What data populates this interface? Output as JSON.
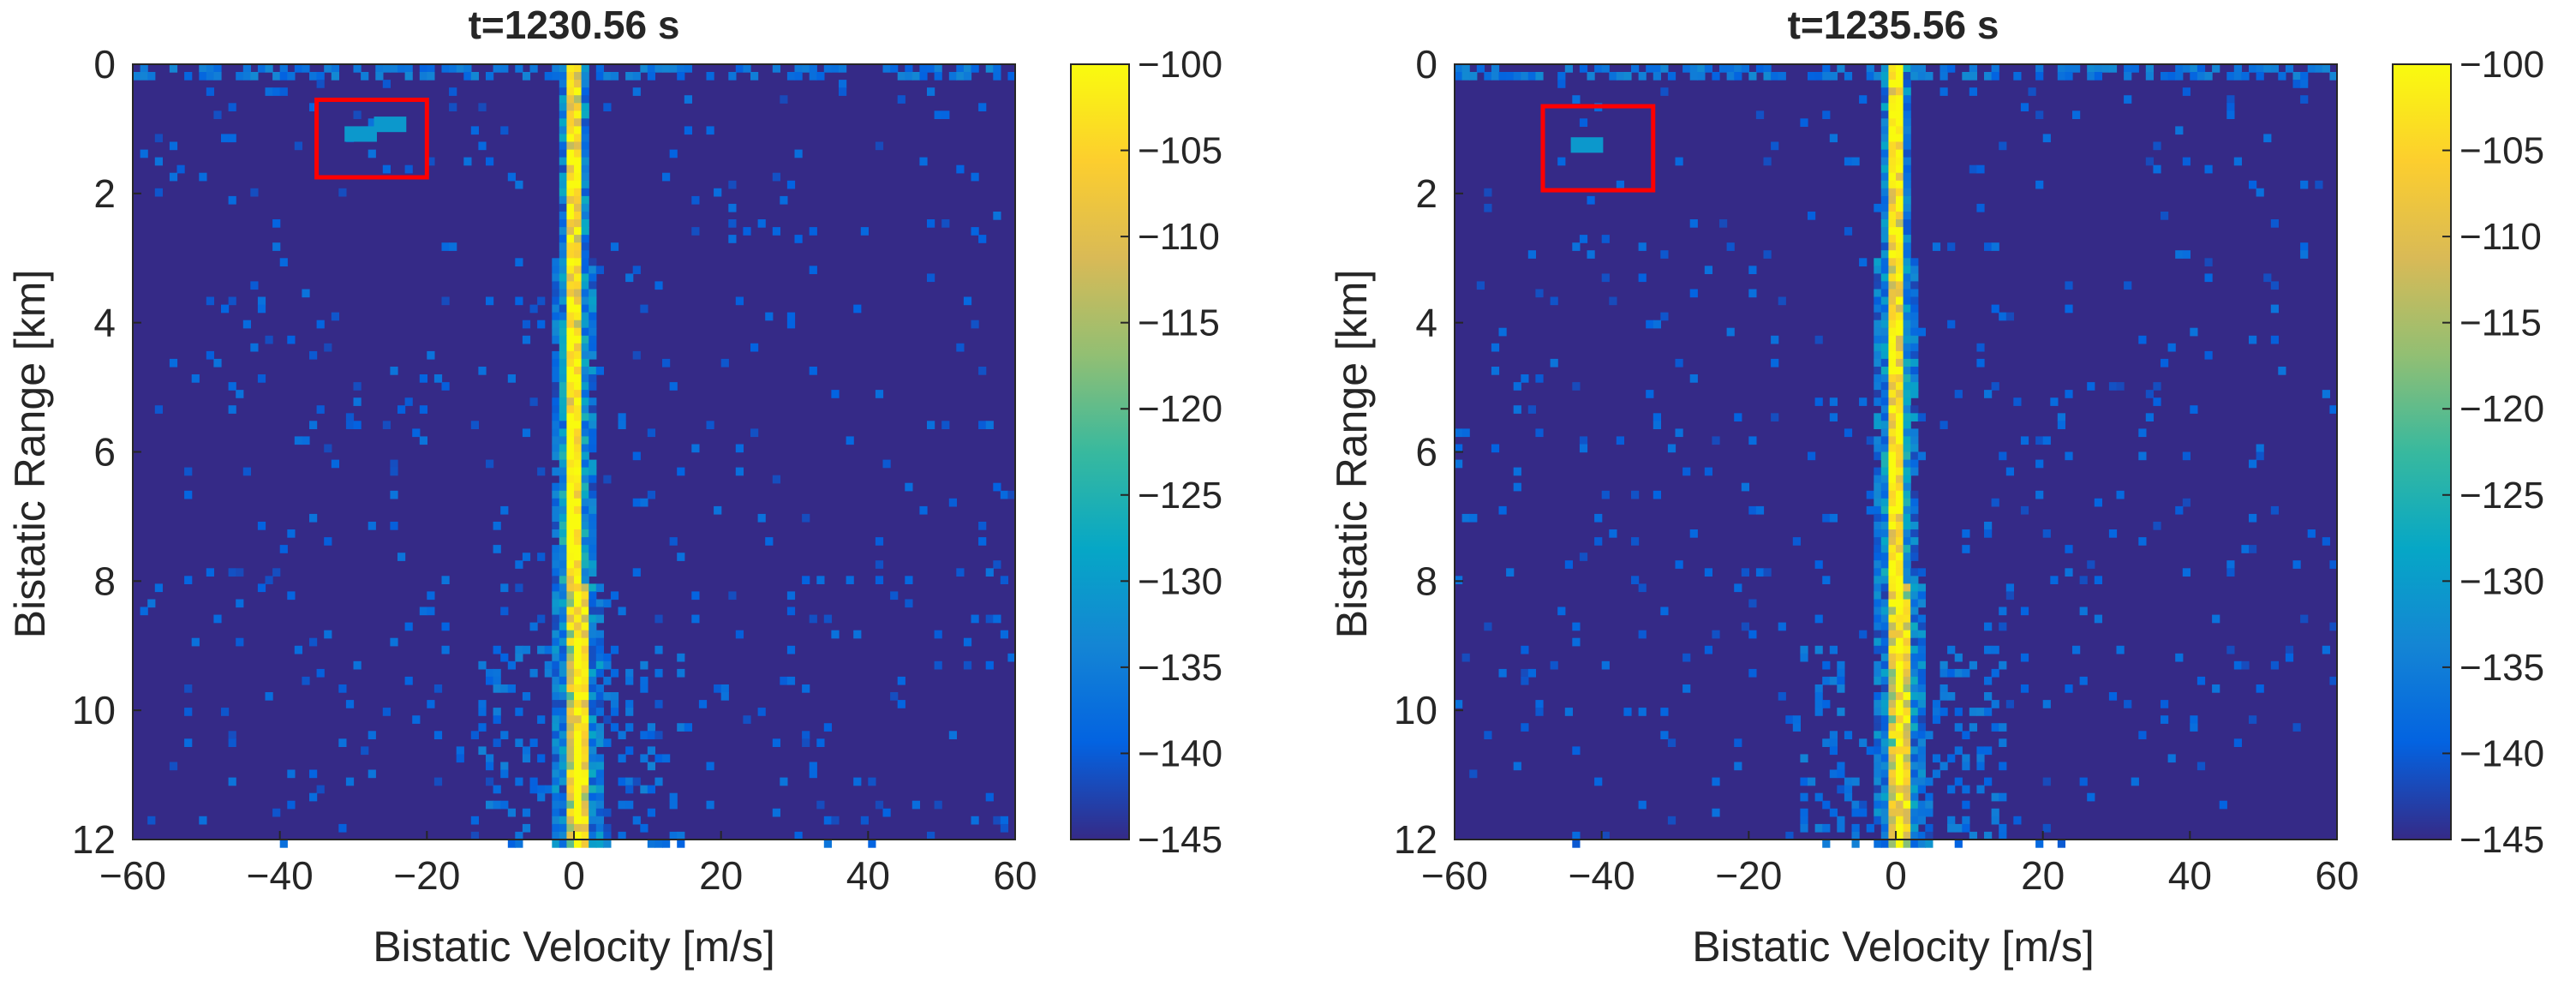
{
  "colors": {
    "background_low": "#352a87",
    "colormap": [
      "#352a87",
      "#0363e1",
      "#1485d4",
      "#06a7c6",
      "#38b99e",
      "#92bf73",
      "#d9ba56",
      "#fcce2e",
      "#f9fb0e"
    ],
    "highlight_box": "#ff0000",
    "axis": "#262626"
  },
  "chart_data": [
    {
      "type": "heatmap",
      "title": "t=1230.56 s",
      "xlabel": "Bistatic Velocity [m/s]",
      "ylabel": "Bistatic Range [km]",
      "xlim": [
        -60,
        60
      ],
      "ylim": [
        0,
        12
      ],
      "y_reversed": true,
      "xticks": [
        "−60",
        "−40",
        "−20",
        "0",
        "20",
        "40",
        "60"
      ],
      "yticks": [
        "0",
        "2",
        "4",
        "6",
        "8",
        "10",
        "12"
      ],
      "colorbar": {
        "clim": [
          -145,
          -100
        ],
        "ticks": [
          "−100",
          "−105",
          "−110",
          "−115",
          "−120",
          "−125",
          "−130",
          "−135",
          "−140",
          "−145"
        ]
      },
      "clutter_ridge": {
        "velocity": 0,
        "spread_far": 4,
        "spread_near": 2
      },
      "targets": [
        {
          "velocity": -29,
          "range": 1.08
        },
        {
          "velocity": -25,
          "range": 0.93
        }
      ],
      "highlight_box": {
        "velocity": [
          -35,
          -20
        ],
        "range": [
          0.55,
          1.75
        ]
      }
    },
    {
      "type": "heatmap",
      "title": "t=1235.56 s",
      "xlabel": "Bistatic Velocity [m/s]",
      "ylabel": "Bistatic Range [km]",
      "xlim": [
        -60,
        60
      ],
      "ylim": [
        0,
        12
      ],
      "y_reversed": true,
      "xticks": [
        "−60",
        "−40",
        "−20",
        "0",
        "20",
        "40",
        "60"
      ],
      "yticks": [
        "0",
        "2",
        "4",
        "6",
        "8",
        "10",
        "12"
      ],
      "colorbar": {
        "clim": [
          -145,
          -100
        ],
        "ticks": [
          "−100",
          "−105",
          "−110",
          "−115",
          "−120",
          "−125",
          "−130",
          "−135",
          "−140",
          "−145"
        ]
      },
      "clutter_ridge": {
        "velocity": 0,
        "spread_far": 4,
        "spread_near": 2
      },
      "targets": [
        {
          "velocity": -42,
          "range": 1.25
        }
      ],
      "highlight_box": {
        "velocity": [
          -48,
          -33
        ],
        "range": [
          0.65,
          1.95
        ]
      }
    }
  ]
}
